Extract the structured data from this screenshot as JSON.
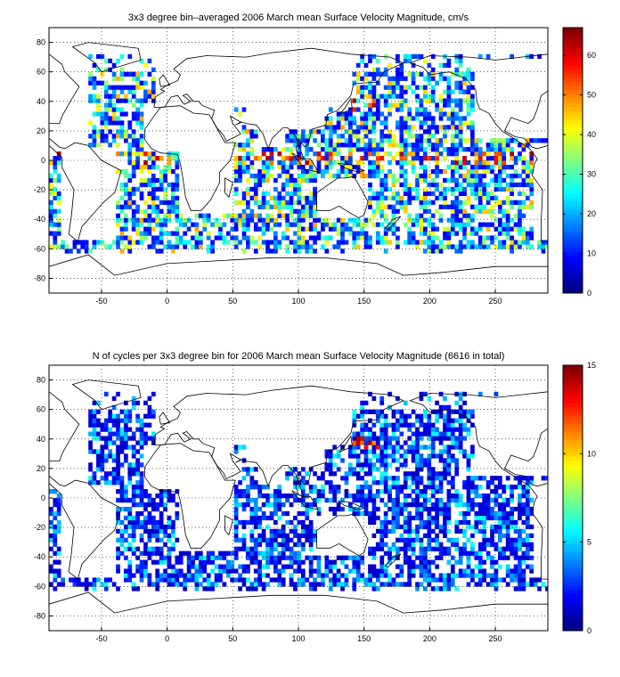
{
  "chart_data": [
    {
      "type": "heatmap",
      "title": "3x3 degree bin–averaged 2006 March mean Surface Velocity Magnitude, cm/s",
      "xlim": [
        -90,
        290
      ],
      "ylim": [
        -90,
        90
      ],
      "xticks": [
        -50,
        0,
        50,
        100,
        150,
        200,
        250
      ],
      "yticks": [
        -80,
        -60,
        -40,
        -20,
        0,
        20,
        40,
        60,
        80
      ],
      "colorbar": {
        "min": 0,
        "max": 67,
        "ticks": [
          0,
          10,
          20,
          30,
          40,
          50,
          60
        ],
        "colormap": "jet"
      },
      "bin_size_deg": 3,
      "grid": true,
      "coastlines": true
    },
    {
      "type": "heatmap",
      "title": "N of cycles per 3x3 degree bin for 2006 March mean Surface Velocity Magnitude (6616 in total)",
      "xlim": [
        -90,
        290
      ],
      "ylim": [
        -90,
        90
      ],
      "xticks": [
        -50,
        0,
        50,
        100,
        150,
        200,
        250
      ],
      "yticks": [
        -80,
        -60,
        -40,
        -20,
        0,
        20,
        40,
        60,
        80
      ],
      "colorbar": {
        "min": 0,
        "max": 15,
        "ticks": [
          0,
          5,
          10,
          15
        ],
        "colormap": "jet"
      },
      "bin_size_deg": 3,
      "grid": true,
      "coastlines": true
    }
  ]
}
